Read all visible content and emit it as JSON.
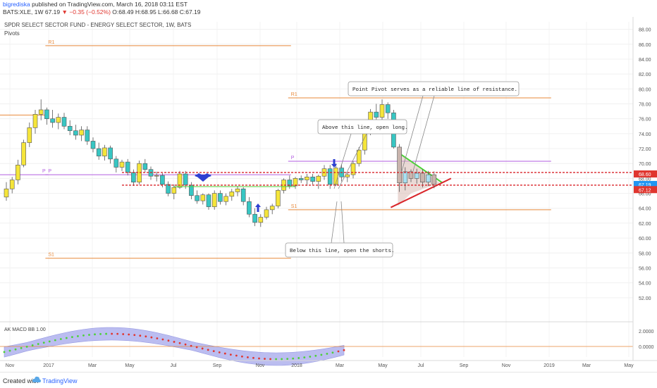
{
  "header": {
    "author": "bigrediska",
    "published": "published on TradingView.com, March 16, 2018 03:11 EST",
    "symbol": "BATS:XLE, 1W",
    "last": "67.19",
    "change": "−0.35 (−0.52%)",
    "ohlc": "O:68.49 H:68.95 L:66.68 C:67.19"
  },
  "chart_data": {
    "type": "candlestick",
    "title": "SPDR SELECT SECTOR FUND - ENERGY SELECT SECTOR, 1W, BATS",
    "indicator_label": "Pivots",
    "ylim": [
      50,
      89
    ],
    "y_ticks": [
      "52.00",
      "54.00",
      "56.00",
      "58.00",
      "60.00",
      "62.00",
      "64.00",
      "66.00",
      "68.00",
      "70.00",
      "72.00",
      "74.00",
      "76.00",
      "78.00",
      "80.00",
      "82.00",
      "84.00",
      "86.00",
      "88.00"
    ],
    "x_labels": [
      "Nov",
      "2017",
      "Mar",
      "May",
      "Jul",
      "Sep",
      "Nov",
      "2018",
      "Mar",
      "May",
      "Jul",
      "Sep",
      "Nov",
      "2019",
      "Mar",
      "May"
    ],
    "candles": [
      [
        65.5,
        67.5,
        65.0,
        66.6
      ],
      [
        66.6,
        68.2,
        66.0,
        67.8
      ],
      [
        67.8,
        70.5,
        67.2,
        69.8
      ],
      [
        69.8,
        73.2,
        69.5,
        72.8
      ],
      [
        72.8,
        75.5,
        72.2,
        74.8
      ],
      [
        74.8,
        77.2,
        74.0,
        76.6
      ],
      [
        76.6,
        78.6,
        75.8,
        77.2
      ],
      [
        77.2,
        77.5,
        75.2,
        76.0
      ],
      [
        76.0,
        77.2,
        74.8,
        75.5
      ],
      [
        75.5,
        76.7,
        74.6,
        76.2
      ],
      [
        76.2,
        76.8,
        74.6,
        75.0
      ],
      [
        75.0,
        75.8,
        73.8,
        74.4
      ],
      [
        74.4,
        75.2,
        73.2,
        73.8
      ],
      [
        73.8,
        75.0,
        73.0,
        74.5
      ],
      [
        74.5,
        75.0,
        72.5,
        73.0
      ],
      [
        73.0,
        73.5,
        71.5,
        72.0
      ],
      [
        72.0,
        72.8,
        70.5,
        71.0
      ],
      [
        71.0,
        72.5,
        70.4,
        72.1
      ],
      [
        72.1,
        72.4,
        70.0,
        70.6
      ],
      [
        70.6,
        71.0,
        68.8,
        69.5
      ],
      [
        69.5,
        70.5,
        69.0,
        70.2
      ],
      [
        70.2,
        70.6,
        68.4,
        68.8
      ],
      [
        68.8,
        69.2,
        67.0,
        67.5
      ],
      [
        67.5,
        70.4,
        67.2,
        70.0
      ],
      [
        70.0,
        70.6,
        68.8,
        69.2
      ],
      [
        69.2,
        69.6,
        67.8,
        68.3
      ],
      [
        68.3,
        68.9,
        67.6,
        68.4
      ],
      [
        68.4,
        68.7,
        66.8,
        67.2
      ],
      [
        67.2,
        67.6,
        65.6,
        66.0
      ],
      [
        66.0,
        67.2,
        65.2,
        66.8
      ],
      [
        66.8,
        69.0,
        66.6,
        68.6
      ],
      [
        68.6,
        69.0,
        66.6,
        67.1
      ],
      [
        67.1,
        67.5,
        65.2,
        65.7
      ],
      [
        65.7,
        66.4,
        64.6,
        65.0
      ],
      [
        65.0,
        66.0,
        64.5,
        65.8
      ],
      [
        65.8,
        66.0,
        63.8,
        64.2
      ],
      [
        64.2,
        66.4,
        63.8,
        66.0
      ],
      [
        66.0,
        66.4,
        64.5,
        64.9
      ],
      [
        64.9,
        66.0,
        64.4,
        65.6
      ],
      [
        65.6,
        66.6,
        65.0,
        66.2
      ],
      [
        66.2,
        67.0,
        65.6,
        66.6
      ],
      [
        66.6,
        66.8,
        64.4,
        64.9
      ],
      [
        64.9,
        65.5,
        62.8,
        63.2
      ],
      [
        63.2,
        64.0,
        61.6,
        62.1
      ],
      [
        62.1,
        63.2,
        61.5,
        62.8
      ],
      [
        62.8,
        64.2,
        62.5,
        63.8
      ],
      [
        63.8,
        64.6,
        63.2,
        64.3
      ],
      [
        64.3,
        66.6,
        64.0,
        66.4
      ],
      [
        66.4,
        68.0,
        66.0,
        67.8
      ],
      [
        67.8,
        68.4,
        66.6,
        67.0
      ],
      [
        67.0,
        68.2,
        66.6,
        68.0
      ],
      [
        68.0,
        68.4,
        67.4,
        67.8
      ],
      [
        67.8,
        68.6,
        67.0,
        68.2
      ],
      [
        68.2,
        68.6,
        67.2,
        67.6
      ],
      [
        67.6,
        68.5,
        66.6,
        68.3
      ],
      [
        68.3,
        69.8,
        67.8,
        69.3
      ],
      [
        69.3,
        69.8,
        66.6,
        67.2
      ],
      [
        67.2,
        70.0,
        67.0,
        69.4
      ],
      [
        69.4,
        69.9,
        67.6,
        68.2
      ],
      [
        68.2,
        68.8,
        67.5,
        68.5
      ],
      [
        68.5,
        70.3,
        68.0,
        70.0
      ],
      [
        70.0,
        72.2,
        69.6,
        71.8
      ],
      [
        71.8,
        74.6,
        71.2,
        74.1
      ],
      [
        74.1,
        77.3,
        73.8,
        76.9
      ],
      [
        76.9,
        78.0,
        75.0,
        76.2
      ],
      [
        76.2,
        78.6,
        75.6,
        77.9
      ],
      [
        77.9,
        78.2,
        76.0,
        76.8
      ],
      [
        76.8,
        77.2,
        72.0,
        72.2
      ],
      [
        72.2,
        72.6,
        66.2,
        67.4
      ],
      [
        67.4,
        69.5,
        66.4,
        68.9
      ],
      [
        68.9,
        69.2,
        67.5,
        68.0
      ],
      [
        68.0,
        69.3,
        67.3,
        68.7
      ],
      [
        68.7,
        69.2,
        66.8,
        67.5
      ],
      [
        67.5,
        69.0,
        67.0,
        68.5
      ],
      [
        68.5,
        68.95,
        66.68,
        67.19
      ]
    ],
    "pivots": [
      {
        "label": "P",
        "y": 68.5,
        "start": -3,
        "end": 7
      },
      {
        "label": "R1",
        "y": 85.8,
        "start": 7,
        "end": 49
      },
      {
        "label": "P",
        "y": 68.5,
        "start": 7,
        "end": 49
      },
      {
        "label": "S1",
        "y": 57.3,
        "start": 7,
        "end": 49
      },
      {
        "label": "R1",
        "y": 78.8,
        "start": 49,
        "end": 94
      },
      {
        "label": "P",
        "y": 70.3,
        "start": 49,
        "end": 94
      },
      {
        "label": "S1",
        "y": 63.8,
        "start": 49,
        "end": 94
      }
    ],
    "pre_pivot_r1": 76.5,
    "resistance_lines": [
      68.8,
      67.1
    ],
    "price_labels": [
      {
        "text": "68.60",
        "y": 68.6,
        "color": "#e0362f"
      },
      {
        "text": "67.19",
        "y": 67.19,
        "color": "#2196f3"
      },
      {
        "text": "67.12",
        "y": 66.5,
        "color": "#e0362f"
      }
    ],
    "annotations": [
      "Point Pivot serves as a reliable line of resistance.",
      "Above this line, open long.",
      "Below this line, open the shorts."
    ],
    "macd": {
      "label": "AK MACD BB 1.00",
      "y_ticks": [
        "2.0000",
        "0.0000"
      ]
    }
  },
  "footer": {
    "created": "Created with",
    "brand": "TradingView"
  },
  "colors": {
    "up": "#f5e53a",
    "down": "#37c6c3",
    "orange": "#e8893a",
    "purple": "#b25ee0",
    "red": "#d9262b",
    "green": "#4cd137",
    "blue": "#2e3fd1"
  }
}
